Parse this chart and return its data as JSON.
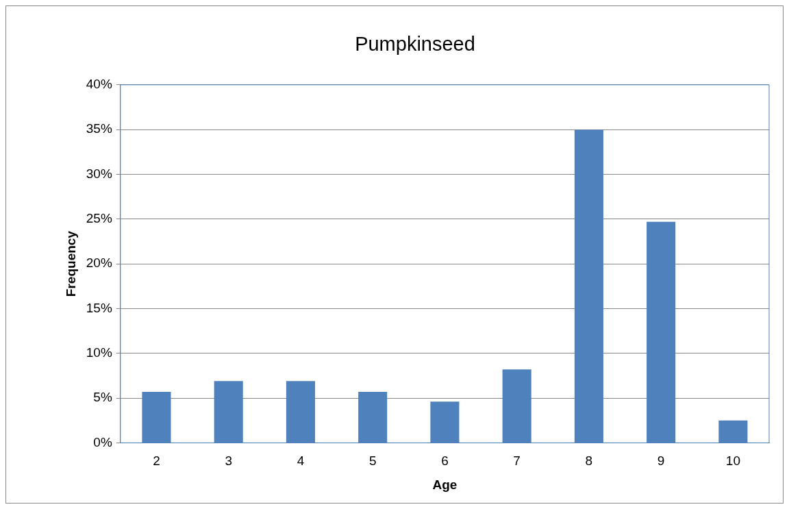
{
  "chart_data": {
    "type": "bar",
    "title": "Pumpkinseed",
    "xlabel": "Age",
    "ylabel": "Frequency",
    "categories": [
      "2",
      "3",
      "4",
      "5",
      "6",
      "7",
      "8",
      "9",
      "10"
    ],
    "values": [
      5.7,
      6.9,
      6.9,
      5.7,
      4.6,
      8.2,
      35,
      24.7,
      2.5
    ],
    "color": "#4f81bd",
    "ylim": [
      0,
      40
    ],
    "yticks": [
      {
        "value": 0,
        "label": "0%"
      },
      {
        "value": 5,
        "label": "5%"
      },
      {
        "value": 10,
        "label": "10%"
      },
      {
        "value": 15,
        "label": "15%"
      },
      {
        "value": 20,
        "label": "20%"
      },
      {
        "value": 25,
        "label": "25%"
      },
      {
        "value": 30,
        "label": "30%"
      },
      {
        "value": 35,
        "label": "35%"
      },
      {
        "value": 40,
        "label": "40%"
      }
    ],
    "grid": "y",
    "legend": false
  }
}
